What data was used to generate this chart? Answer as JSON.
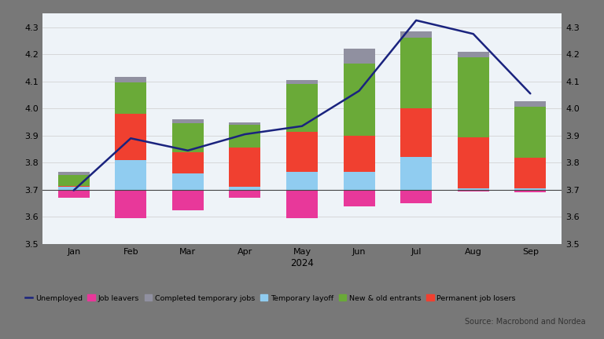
{
  "months": [
    "Jan",
    "Feb",
    "Mar",
    "Apr",
    "May",
    "Jun",
    "Jul",
    "Aug",
    "Sep"
  ],
  "baseline": 3.7,
  "unemployed_line": [
    3.698,
    3.89,
    3.845,
    3.905,
    3.935,
    4.065,
    4.325,
    4.275,
    4.055
  ],
  "bar_components": {
    "job_leavers": [
      -0.03,
      -0.105,
      -0.075,
      -0.03,
      -0.105,
      -0.06,
      -0.05,
      -0.005,
      -0.008
    ],
    "temporary_layoff": [
      0.01,
      0.11,
      0.06,
      0.01,
      0.065,
      0.065,
      0.12,
      0.005,
      0.005
    ],
    "permanent_job_losers": [
      0.005,
      0.17,
      0.08,
      0.145,
      0.15,
      0.135,
      0.18,
      0.19,
      0.112
    ],
    "new_old_entrants": [
      0.04,
      0.115,
      0.105,
      0.085,
      0.175,
      0.265,
      0.26,
      0.295,
      0.19
    ],
    "completed_temporary_jobs": [
      0.01,
      0.02,
      0.015,
      0.01,
      0.015,
      0.055,
      0.025,
      0.02,
      0.02
    ]
  },
  "colors": {
    "job_leavers": "#e8389a",
    "temporary_layoff": "#90ccf0",
    "permanent_job_losers": "#f04030",
    "new_old_entrants": "#6aaa38",
    "completed_temporary_jobs": "#9090a0",
    "unemployed_line": "#1a237e"
  },
  "ylim": [
    3.5,
    4.35
  ],
  "yticks": [
    3.5,
    3.6,
    3.7,
    3.8,
    3.9,
    4.0,
    4.1,
    4.2,
    4.3
  ],
  "xlabel": "2024",
  "outer_bg": "#787878",
  "panel_bg": "#eef3f8",
  "white_bg": "#ffffff",
  "source_text": "Source: Macrobond and Nordea",
  "legend_items": [
    {
      "label": "Unemployed",
      "color": "#1a237e",
      "type": "line"
    },
    {
      "label": "Job leavers",
      "color": "#e8389a",
      "type": "bar"
    },
    {
      "label": "Completed temporary jobs",
      "color": "#9090a0",
      "type": "bar"
    },
    {
      "label": "Temporary layoff",
      "color": "#90ccf0",
      "type": "bar"
    },
    {
      "label": "New & old entrants",
      "color": "#6aaa38",
      "type": "bar"
    },
    {
      "label": "Permanent job losers",
      "color": "#f04030",
      "type": "bar"
    }
  ]
}
